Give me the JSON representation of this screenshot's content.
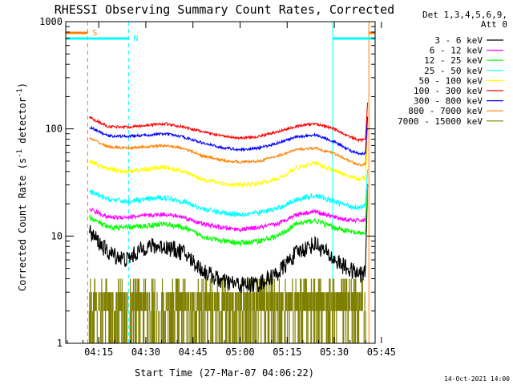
{
  "chart_data": {
    "type": "line",
    "title": "RHESSI Observing Summary Count Rates, Corrected",
    "xlabel": "Start Time (27-Mar-07 04:06:22)",
    "ylabel_main": "Corrected Count Rate (s",
    "ylabel_sup": "-1",
    "ylabel_tail": " detector",
    "ylabel_close": ")",
    "yscale": "log",
    "ylim": [
      1,
      1000
    ],
    "xlim_minutes": [
      4.5,
      103
    ],
    "x_ticks": [
      {
        "label": "04:15",
        "min": 15
      },
      {
        "label": "04:30",
        "min": 30
      },
      {
        "label": "04:45",
        "min": 45
      },
      {
        "label": "05:00",
        "min": 60
      },
      {
        "label": "05:15",
        "min": 75
      },
      {
        "label": "05:30",
        "min": 90
      },
      {
        "label": "05:45",
        "min": 105
      }
    ],
    "y_ticks": [
      {
        "label": "1",
        "v": 1
      },
      {
        "label": "10",
        "v": 10
      },
      {
        "label": "100",
        "v": 100
      },
      {
        "label": "1000",
        "v": 1000
      }
    ],
    "legend_header": [
      "Det 1,3,4,5,6,9,",
      "Att 0"
    ],
    "legend_position": "right",
    "series": [
      {
        "name": "3 - 6 keV",
        "color": "#000000",
        "anchors": [
          [
            12,
            11
          ],
          [
            18,
            7
          ],
          [
            24,
            6
          ],
          [
            30,
            8
          ],
          [
            36,
            8
          ],
          [
            42,
            7
          ],
          [
            48,
            4.8
          ],
          [
            54,
            3.8
          ],
          [
            60,
            3.5
          ],
          [
            66,
            3.6
          ],
          [
            72,
            4.5
          ],
          [
            78,
            7
          ],
          [
            84,
            8.5
          ],
          [
            90,
            6
          ],
          [
            95,
            4.8
          ],
          [
            98,
            4.4
          ],
          [
            100,
            4.5
          ]
        ],
        "noise": 0.08
      },
      {
        "name": "6 - 12 keV",
        "color": "#ff00ff",
        "anchors": [
          [
            12,
            18
          ],
          [
            18,
            15
          ],
          [
            24,
            15
          ],
          [
            36,
            16
          ],
          [
            42,
            15
          ],
          [
            48,
            13
          ],
          [
            54,
            12
          ],
          [
            60,
            11.5
          ],
          [
            66,
            12
          ],
          [
            72,
            13
          ],
          [
            78,
            16
          ],
          [
            84,
            17
          ],
          [
            90,
            15
          ],
          [
            95,
            14
          ],
          [
            98,
            14
          ],
          [
            100,
            14
          ]
        ],
        "noise": 0.02
      },
      {
        "name": "12 - 25 keV",
        "color": "#00ff00",
        "anchors": [
          [
            12,
            15
          ],
          [
            18,
            12
          ],
          [
            24,
            12
          ],
          [
            36,
            13
          ],
          [
            42,
            12
          ],
          [
            48,
            10
          ],
          [
            54,
            9
          ],
          [
            60,
            8.6
          ],
          [
            66,
            9
          ],
          [
            72,
            10
          ],
          [
            78,
            13
          ],
          [
            84,
            14
          ],
          [
            90,
            12
          ],
          [
            95,
            11
          ],
          [
            98,
            10.5
          ],
          [
            100,
            10.8
          ]
        ],
        "noise": 0.025
      },
      {
        "name": "25 - 50 keV",
        "color": "#00ffff",
        "anchors": [
          [
            12,
            26
          ],
          [
            18,
            22
          ],
          [
            24,
            21
          ],
          [
            36,
            23
          ],
          [
            42,
            21
          ],
          [
            48,
            18
          ],
          [
            54,
            16.5
          ],
          [
            60,
            16
          ],
          [
            66,
            16.5
          ],
          [
            72,
            18
          ],
          [
            78,
            22
          ],
          [
            84,
            24
          ],
          [
            90,
            21
          ],
          [
            95,
            19
          ],
          [
            98,
            18.5
          ],
          [
            100,
            19
          ]
        ],
        "noise": 0.025
      },
      {
        "name": "50 - 100 keV",
        "color": "#ffff00",
        "anchors": [
          [
            12,
            50
          ],
          [
            18,
            42
          ],
          [
            24,
            40
          ],
          [
            36,
            44
          ],
          [
            42,
            40
          ],
          [
            48,
            34
          ],
          [
            54,
            31
          ],
          [
            60,
            30
          ],
          [
            66,
            31
          ],
          [
            72,
            34
          ],
          [
            78,
            43
          ],
          [
            84,
            48
          ],
          [
            90,
            41
          ],
          [
            95,
            36
          ],
          [
            98,
            34
          ],
          [
            100,
            35
          ]
        ],
        "noise": 0.02
      },
      {
        "name": "100 - 300 keV",
        "color": "#ff0000",
        "anchors": [
          [
            12,
            128
          ],
          [
            18,
            105
          ],
          [
            24,
            104
          ],
          [
            30,
            108
          ],
          [
            36,
            112
          ],
          [
            42,
            104
          ],
          [
            48,
            94
          ],
          [
            54,
            86
          ],
          [
            60,
            82
          ],
          [
            66,
            85
          ],
          [
            72,
            94
          ],
          [
            78,
            106
          ],
          [
            84,
            112
          ],
          [
            90,
            100
          ],
          [
            95,
            84
          ],
          [
            98,
            78
          ],
          [
            100,
            80
          ]
        ],
        "noise": 0.012
      },
      {
        "name": "300 - 800 keV",
        "color": "#0000ff",
        "anchors": [
          [
            12,
            104
          ],
          [
            18,
            86
          ],
          [
            24,
            85
          ],
          [
            36,
            90
          ],
          [
            42,
            84
          ],
          [
            48,
            74
          ],
          [
            54,
            67
          ],
          [
            60,
            64
          ],
          [
            66,
            66
          ],
          [
            72,
            74
          ],
          [
            78,
            84
          ],
          [
            84,
            88
          ],
          [
            90,
            76
          ],
          [
            95,
            63
          ],
          [
            98,
            58
          ],
          [
            100,
            59
          ]
        ],
        "noise": 0.012
      },
      {
        "name": "800 - 7000 keV",
        "color": "#ff8000",
        "anchors": [
          [
            12,
            82
          ],
          [
            18,
            68
          ],
          [
            24,
            66
          ],
          [
            36,
            70
          ],
          [
            42,
            66
          ],
          [
            48,
            56
          ],
          [
            54,
            51
          ],
          [
            60,
            49
          ],
          [
            66,
            50
          ],
          [
            72,
            56
          ],
          [
            78,
            64
          ],
          [
            84,
            66
          ],
          [
            90,
            59
          ],
          [
            95,
            50
          ],
          [
            98,
            46
          ],
          [
            100,
            47
          ]
        ],
        "noise": 0.012
      },
      {
        "name": "7000 - 15000 keV",
        "color": "#808000",
        "anchors": [
          [
            12,
            2
          ],
          [
            100,
            2
          ]
        ],
        "noise": 0
      }
    ],
    "markers": {
      "saa": {
        "label": "S",
        "color": "#ff8000",
        "x0": 4.5,
        "x1": 11.5,
        "xend": 11.5,
        "xstart": 101,
        "xstart_end": 103
      },
      "night": {
        "label": "N",
        "color": "#00ffff",
        "x0": 4.5,
        "x1": 24.5,
        "xend": 24.5,
        "xstart": 89.5,
        "xstart_end": 103
      }
    }
  },
  "footer_date": "14-Oct-2021 14:00"
}
